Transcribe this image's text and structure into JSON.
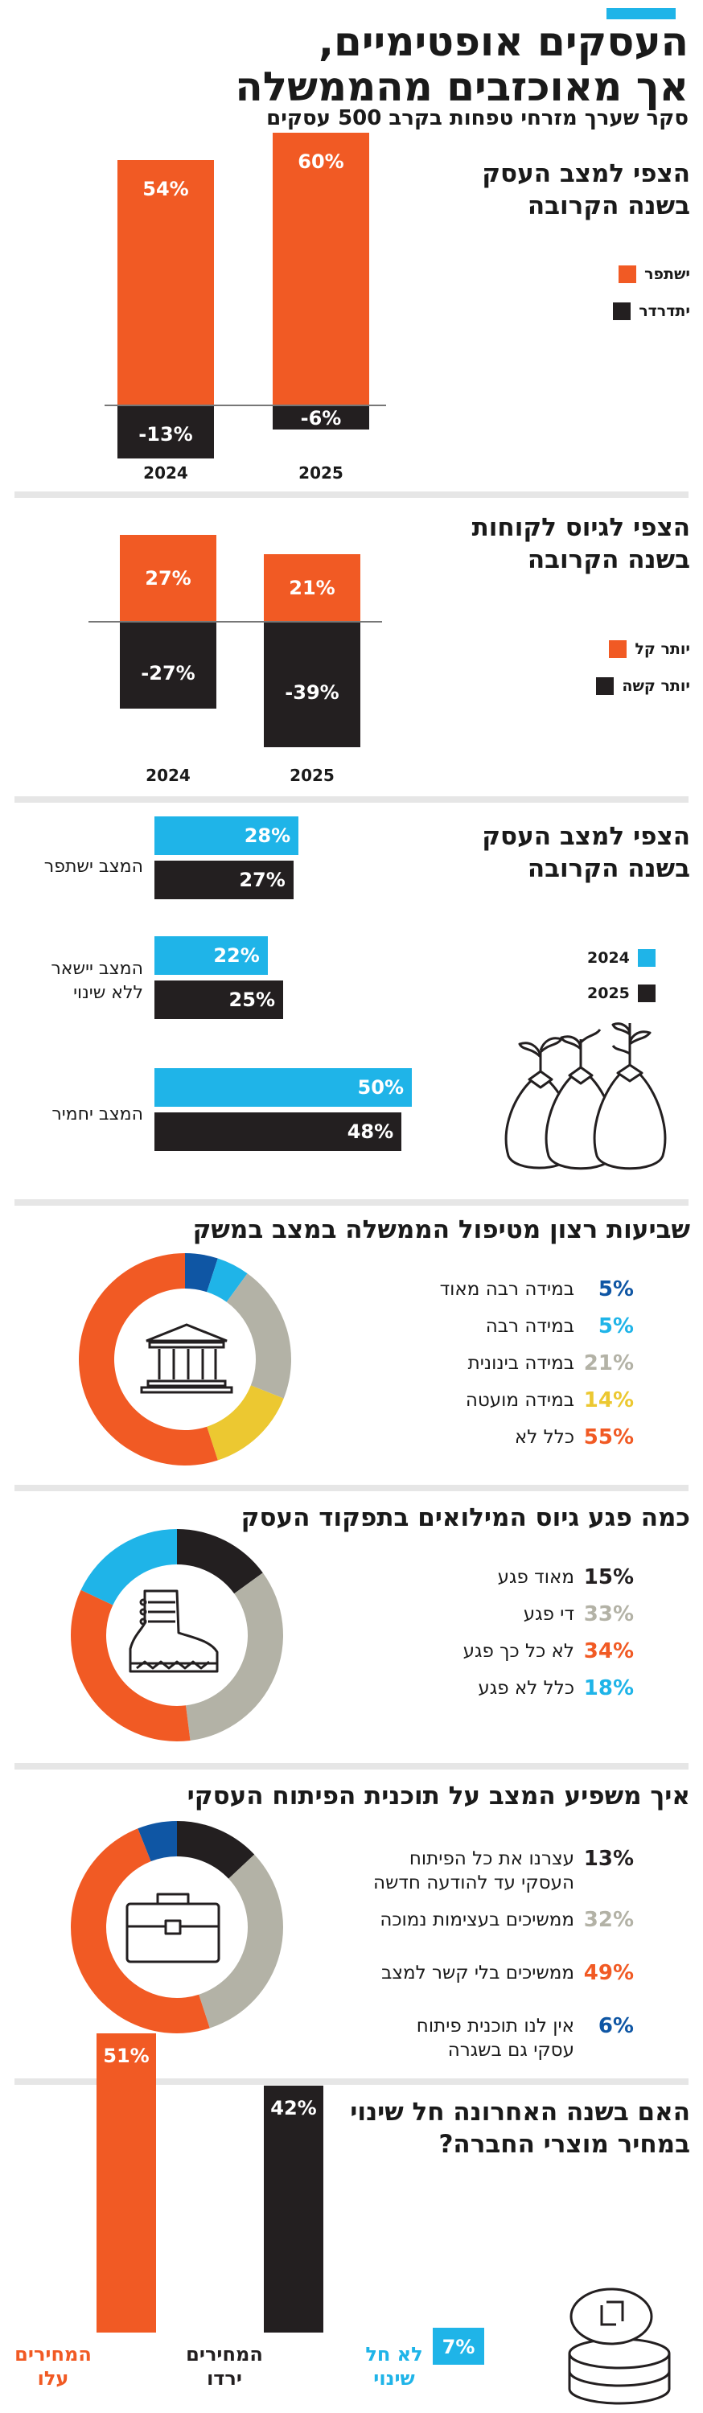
{
  "header": {
    "title_line1": "העסקים אופטימיים,",
    "title_line2": "אך מאוכזבים מהממשלה",
    "subtitle": "סקר שערך מזרחי טפחות בקרב 500 עסקים"
  },
  "colors": {
    "orange": "#f15a24",
    "black": "#231f20",
    "blue": "#1fb4e8",
    "gray": "#b3b2a6",
    "yellow": "#ecc831",
    "darkblue": "#0f56a4"
  },
  "chart_data": [
    {
      "type": "bar",
      "title": "הצפי למצב העסק בשנה הקרובה",
      "categories": [
        "2024",
        "2025"
      ],
      "series": [
        {
          "name": "ישתפר",
          "values": [
            54,
            60
          ]
        },
        {
          "name": "יתדרדר",
          "values": [
            -13,
            -6
          ]
        }
      ],
      "value_labels": {
        "improve": [
          "54%",
          "60%"
        ],
        "worsen": [
          "-13%",
          "-6%"
        ]
      }
    },
    {
      "type": "bar",
      "title": "הצפי לגיוס לקוחות בשנה הקרובה",
      "categories": [
        "2024",
        "2025"
      ],
      "series": [
        {
          "name": "יותר קל",
          "values": [
            27,
            21
          ]
        },
        {
          "name": "יותר קשה",
          "values": [
            -27,
            -39
          ]
        }
      ],
      "value_labels": {
        "easier": [
          "27%",
          "21%"
        ],
        "harder": [
          "-27%",
          "-39%"
        ]
      }
    },
    {
      "type": "bar",
      "orientation": "horizontal",
      "title": "הצפי למצב העסק בשנה הקרובה",
      "categories": [
        "המצב ישתפר",
        "המצב יישאר ללא שינוי",
        "המצב יחמיר"
      ],
      "series": [
        {
          "name": "2024",
          "values": [
            28,
            22,
            50
          ]
        },
        {
          "name": "2025",
          "values": [
            27,
            25,
            48
          ]
        }
      ],
      "value_labels": {
        "y2024": [
          "28%",
          "22%",
          "50%"
        ],
        "y2025": [
          "27%",
          "25%",
          "48%"
        ]
      },
      "category_lines": [
        [
          "המצב ישתפר"
        ],
        [
          "המצב יישאר",
          "ללא שינוי"
        ],
        [
          "המצב יחמיר"
        ]
      ]
    },
    {
      "type": "pie",
      "title": "שביעות רצון מטיפול הממשלה במצב במשק",
      "labels": [
        "במידה רבה מאוד",
        "במידה רבה",
        "במידה בינונית",
        "במידה מועטה",
        "כלל לא"
      ],
      "values": [
        5,
        5,
        21,
        14,
        55
      ],
      "value_labels": [
        "5%",
        "5%",
        "21%",
        "14%",
        "55%"
      ]
    },
    {
      "type": "pie",
      "title": "כמה פגע גיוס המילואים בתפקוד העסק",
      "labels": [
        "מאוד פגע",
        "די פגע",
        "לא כל כך פגע",
        "כלל לא פגע"
      ],
      "values": [
        15,
        33,
        34,
        18
      ],
      "value_labels": [
        "15%",
        "33%",
        "34%",
        "18%"
      ]
    },
    {
      "type": "pie",
      "title": "איך משפיע המצב על תוכנית הפיתוח העסקי",
      "labels": [
        "עצרנו את כל הפיתוח העסקי עד להודעה חדשה",
        "ממשיכים בעצימות נמוכה",
        "ממשיכים בלי קשר למצב",
        "אין לנו תוכנית פיתוח עסקי גם בשגרה"
      ],
      "values": [
        13,
        32,
        49,
        6
      ],
      "value_labels": [
        "13%",
        "32%",
        "49%",
        "6%"
      ],
      "label_lines": [
        [
          "עצרנו את כל הפיתוח",
          "העסקי עד להודעה חדשה"
        ],
        [
          "ממשיכים בעצימות נמוכה"
        ],
        [
          "ממשיכים בלי קשר למצב"
        ],
        [
          "אין לנו תוכנית פיתוח",
          "עסקי גם בשגרה"
        ]
      ]
    },
    {
      "type": "bar",
      "title": "האם בשנה האחרונה חל שינוי במחיר מוצרי החברה?",
      "categories": [
        "המחירים עלו",
        "המחירים ירדו",
        "לא חל שינוי"
      ],
      "values": [
        51,
        42,
        7
      ],
      "value_labels": [
        "51%",
        "42%",
        "7%"
      ],
      "category_lines": [
        [
          "המחירים",
          "עלו"
        ],
        [
          "המחירים",
          "ירדו"
        ],
        [
          "לא חל",
          "שינוי"
        ]
      ]
    }
  ],
  "sections": {
    "s1": {
      "title_l1": "הצפי למצב העסק",
      "title_l2": "בשנה הקרובה",
      "legend": [
        "ישתפר",
        "יתדרדר"
      ],
      "years": [
        "2024",
        "2025"
      ]
    },
    "s2": {
      "title_l1": "הצפי לגיוס לקוחות",
      "title_l2": "בשנה הקרובה",
      "legend": [
        "יותר קל",
        "יותר קשה"
      ],
      "years": [
        "2024",
        "2025"
      ]
    },
    "s3": {
      "title_l1": "הצפי למצב העסק",
      "title_l2": "בשנה הקרובה",
      "legend": [
        "2024",
        "2025"
      ]
    },
    "s7": {
      "title_l1": "האם בשנה האחרונה חל שינוי",
      "title_l2": "במחיר מוצרי החברה?"
    }
  }
}
